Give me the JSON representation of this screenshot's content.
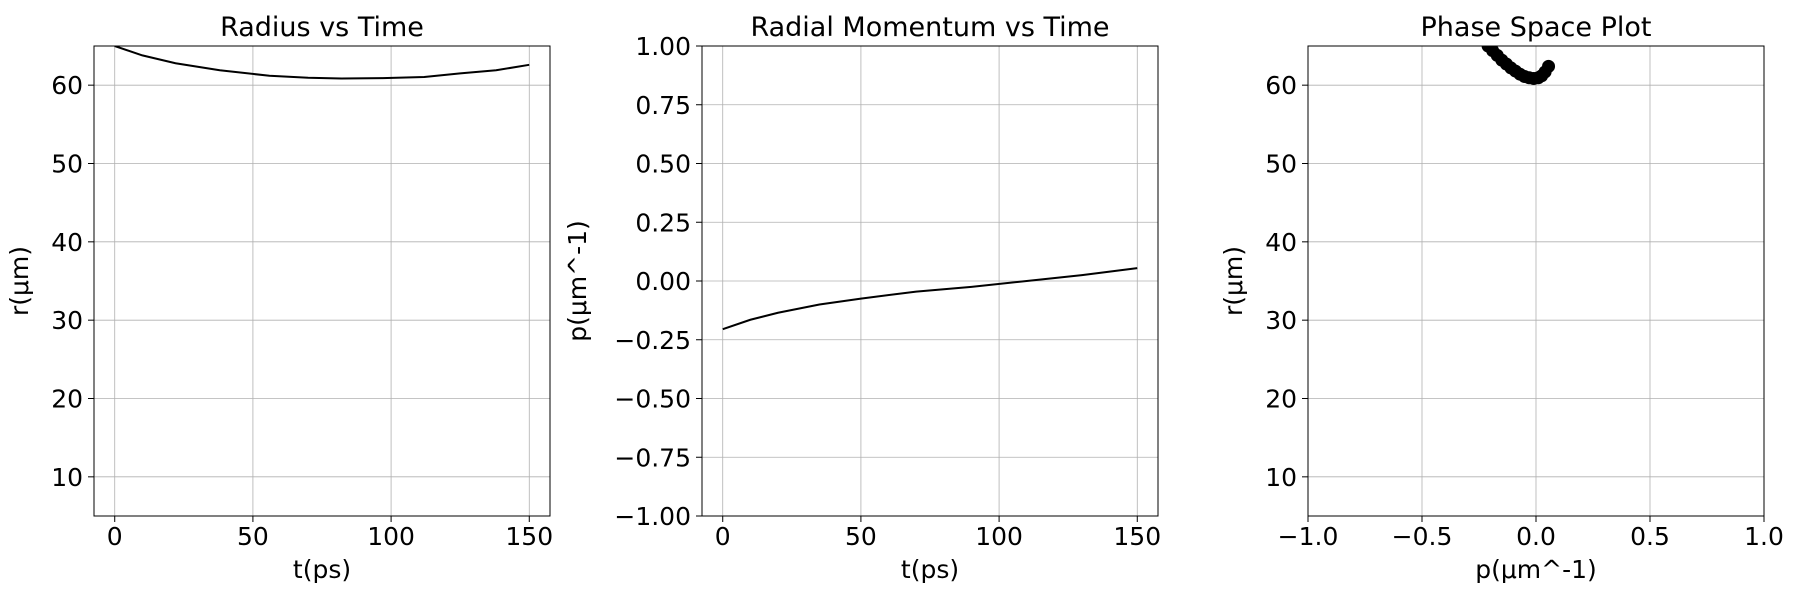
{
  "chart_data": [
    {
      "type": "line",
      "title": "Radius vs Time",
      "xlabel": "t(ps)",
      "ylabel": "r(μm)",
      "xlim": [
        -7.5,
        157.5
      ],
      "ylim": [
        5,
        65
      ],
      "xticks": [
        0,
        50,
        100,
        150
      ],
      "yticks": [
        10,
        20,
        30,
        40,
        50,
        60
      ],
      "xtick_labels": [
        "0",
        "50",
        "100",
        "150"
      ],
      "ytick_labels": [
        "10",
        "20",
        "30",
        "40",
        "50",
        "60"
      ],
      "grid": true,
      "x": [
        0,
        10,
        22,
        38,
        56,
        70,
        82,
        97,
        112,
        125,
        138,
        150
      ],
      "series": [
        {
          "values": [
            65,
            63.8,
            62.8,
            61.9,
            61.2,
            60.95,
            60.85,
            60.9,
            61.05,
            61.5,
            61.9,
            62.6
          ],
          "color": "#000000"
        }
      ]
    },
    {
      "type": "line",
      "title": "Radial Momentum vs Time",
      "xlabel": "t(ps)",
      "ylabel": "p(μm^-1)",
      "xlim": [
        -7.5,
        157.5
      ],
      "ylim": [
        -1.0,
        1.0
      ],
      "xticks": [
        0,
        50,
        100,
        150
      ],
      "yticks": [
        -1.0,
        -0.75,
        -0.5,
        -0.25,
        0.0,
        0.25,
        0.5,
        0.75,
        1.0
      ],
      "xtick_labels": [
        "0",
        "50",
        "100",
        "150"
      ],
      "ytick_labels": [
        "−1.00",
        "−0.75",
        "−0.50",
        "−0.25",
        "0.00",
        "0.25",
        "0.50",
        "0.75",
        "1.00"
      ],
      "grid": true,
      "x": [
        0,
        10,
        20,
        35,
        50,
        70,
        90,
        110,
        130,
        140,
        150
      ],
      "series": [
        {
          "values": [
            -0.205,
            -0.165,
            -0.135,
            -0.1,
            -0.075,
            -0.045,
            -0.025,
            0.0,
            0.025,
            0.04,
            0.055
          ],
          "color": "#000000"
        }
      ]
    },
    {
      "type": "scatter",
      "title": "Phase Space Plot",
      "xlabel": "p(μm^-1)",
      "ylabel": "r(μm)",
      "xlim": [
        -1.0,
        1.0
      ],
      "ylim": [
        5,
        65
      ],
      "xticks": [
        -1.0,
        -0.5,
        0.0,
        0.5,
        1.0
      ],
      "yticks": [
        10,
        20,
        30,
        40,
        50,
        60
      ],
      "xtick_labels": [
        "−1.0",
        "−0.5",
        "0.0",
        "0.5",
        "1.0"
      ],
      "ytick_labels": [
        "10",
        "20",
        "30",
        "40",
        "50",
        "60"
      ],
      "grid": true,
      "points": [
        [
          -0.21,
          65.0
        ],
        [
          -0.19,
          64.4
        ],
        [
          -0.17,
          63.8
        ],
        [
          -0.15,
          63.2
        ],
        [
          -0.13,
          62.7
        ],
        [
          -0.11,
          62.2
        ],
        [
          -0.09,
          61.8
        ],
        [
          -0.07,
          61.4
        ],
        [
          -0.05,
          61.1
        ],
        [
          -0.03,
          60.95
        ],
        [
          -0.01,
          60.85
        ],
        [
          0.01,
          60.95
        ],
        [
          0.025,
          61.2
        ],
        [
          0.04,
          61.7
        ],
        [
          0.055,
          62.4
        ]
      ],
      "color": "#000000"
    }
  ]
}
